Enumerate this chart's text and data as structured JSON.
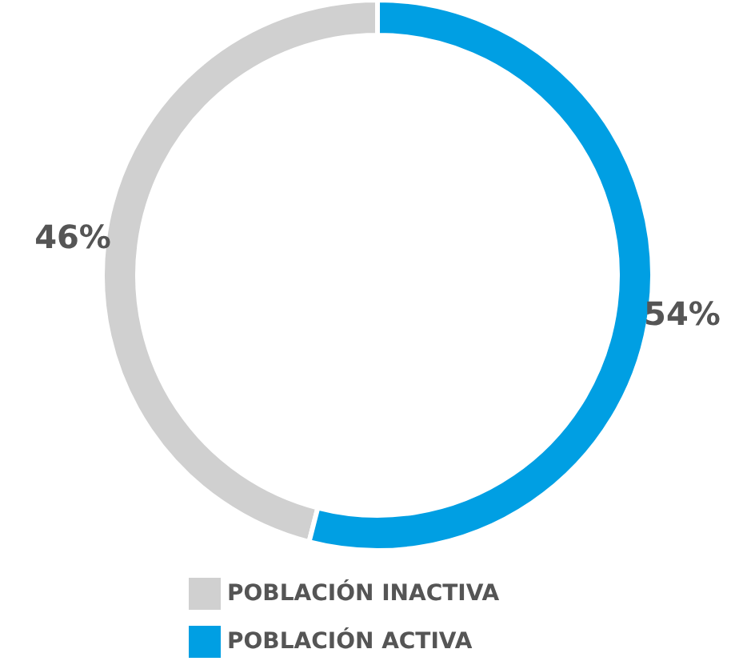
{
  "chart_data": {
    "type": "donut",
    "categories": [
      "POBLACIÓN INACTIVA",
      "POBLACIÓN ACTIVA"
    ],
    "values": [
      46,
      54
    ],
    "colors": [
      "#d0d0d0",
      "#009fe3"
    ],
    "value_labels": [
      "46%",
      "54%"
    ],
    "legend": "bottom"
  }
}
